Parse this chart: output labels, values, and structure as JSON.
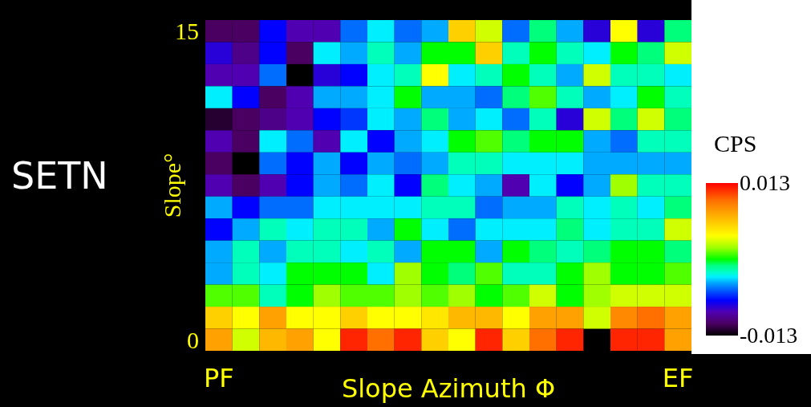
{
  "chart_data": {
    "type": "heatmap",
    "xlabel": "Slope Azimuth Φ",
    "ylabel": "Slope°",
    "clabel": "CPS",
    "annotations": [
      "SETN"
    ],
    "categories": [
      "PF",
      null,
      null,
      null,
      null,
      null,
      null,
      null,
      null,
      null,
      null,
      null,
      null,
      null,
      null,
      null,
      null,
      "EF"
    ],
    "y_categories": [
      "15",
      null,
      null,
      null,
      null,
      null,
      null,
      null,
      null,
      null,
      null,
      null,
      null,
      null,
      "0"
    ],
    "clim": [
      -0.013,
      0.013
    ],
    "cticks": [
      -0.013,
      0.013
    ],
    "cells": [
      [
        -0.011,
        -0.011,
        -0.007,
        -0.009,
        -0.009,
        -0.005,
        -0.003,
        -0.005,
        -0.004,
        0.006,
        0.003,
        -0.005,
        -0.001,
        -0.004,
        -0.008,
        0.004,
        -0.008,
        -0.001
      ],
      [
        -0.008,
        -0.01,
        -0.007,
        -0.011,
        -0.003,
        -0.004,
        -0.002,
        -0.004,
        0,
        0,
        0.006,
        -0.002,
        0,
        -0.002,
        -0.003,
        0,
        -0.001,
        0.003
      ],
      [
        -0.009,
        -0.009,
        -0.005,
        -0.013,
        -0.008,
        -0.007,
        -0.003,
        -0.002,
        0.004,
        -0.003,
        -0.002,
        0,
        -0.002,
        -0.004,
        0.003,
        -0.002,
        -0.002,
        -0.003
      ],
      [
        -0.003,
        -0.007,
        -0.011,
        -0.009,
        -0.004,
        -0.004,
        -0.003,
        0,
        -0.004,
        -0.004,
        -0.005,
        -0.001,
        0.001,
        -0.002,
        -0.004,
        -0.003,
        0,
        -0.002
      ],
      [
        -0.012,
        -0.011,
        -0.01,
        -0.009,
        -0.007,
        -0.006,
        -0.003,
        -0.004,
        -0.001,
        -0.004,
        -0.003,
        -0.005,
        -0.002,
        -0.008,
        0.003,
        -0.001,
        0.003,
        -0.001
      ],
      [
        -0.009,
        -0.011,
        -0.003,
        -0.005,
        -0.009,
        -0.003,
        -0.007,
        -0.004,
        -0.003,
        0,
        0.001,
        -0.001,
        0,
        0,
        -0.004,
        -0.005,
        -0.002,
        -0.002
      ],
      [
        -0.011,
        -0.013,
        -0.005,
        -0.007,
        -0.004,
        -0.007,
        -0.004,
        -0.005,
        -0.004,
        -0.002,
        -0.002,
        -0.003,
        -0.003,
        -0.003,
        -0.004,
        -0.004,
        -0.004,
        -0.004
      ],
      [
        -0.009,
        -0.011,
        -0.009,
        -0.007,
        -0.004,
        -0.005,
        -0.003,
        -0.007,
        -0.001,
        -0.003,
        -0.004,
        -0.009,
        -0.003,
        -0.007,
        -0.004,
        0.002,
        -0.002,
        -0.002
      ],
      [
        -0.004,
        -0.007,
        -0.005,
        -0.005,
        -0.003,
        -0.003,
        -0.003,
        -0.003,
        -0.002,
        -0.002,
        -0.005,
        -0.004,
        -0.004,
        -0.002,
        -0.003,
        -0.002,
        -0.003,
        -0.001
      ],
      [
        -0.007,
        -0.004,
        -0.002,
        -0.003,
        -0.002,
        -0.002,
        -0.004,
        0,
        -0.003,
        -0.005,
        -0.003,
        -0.003,
        -0.003,
        -0.001,
        -0.003,
        -0.002,
        -0.002,
        0.003
      ],
      [
        -0.004,
        -0.002,
        -0.004,
        -0.002,
        -0.002,
        -0.003,
        -0.002,
        -0.004,
        0,
        0,
        -0.004,
        0,
        -0.001,
        -0.002,
        -0.001,
        0,
        0,
        -0.001
      ],
      [
        -0.004,
        -0.002,
        -0.003,
        0,
        0,
        0,
        -0.003,
        0.002,
        0,
        -0.001,
        0.001,
        -0.002,
        -0.002,
        0,
        0.002,
        0,
        0,
        0.001
      ],
      [
        0.001,
        0.001,
        -0.002,
        0,
        0.002,
        0.001,
        0.001,
        0.002,
        0.001,
        0.002,
        0,
        0.001,
        0.003,
        0,
        0.002,
        0.003,
        0.003,
        0.003
      ],
      [
        0.006,
        0.004,
        0.008,
        0.004,
        0.004,
        0.006,
        0.004,
        0.004,
        0.005,
        0.007,
        0.007,
        0.004,
        0.008,
        0.008,
        0.003,
        0.009,
        0.01,
        0.008
      ],
      [
        0.008,
        0.003,
        0.007,
        0.008,
        0.004,
        0.012,
        0.01,
        0.012,
        0.006,
        0.004,
        0.012,
        0.006,
        0.01,
        0.012,
        null,
        0.012,
        0.012,
        0.008
      ]
    ]
  }
}
